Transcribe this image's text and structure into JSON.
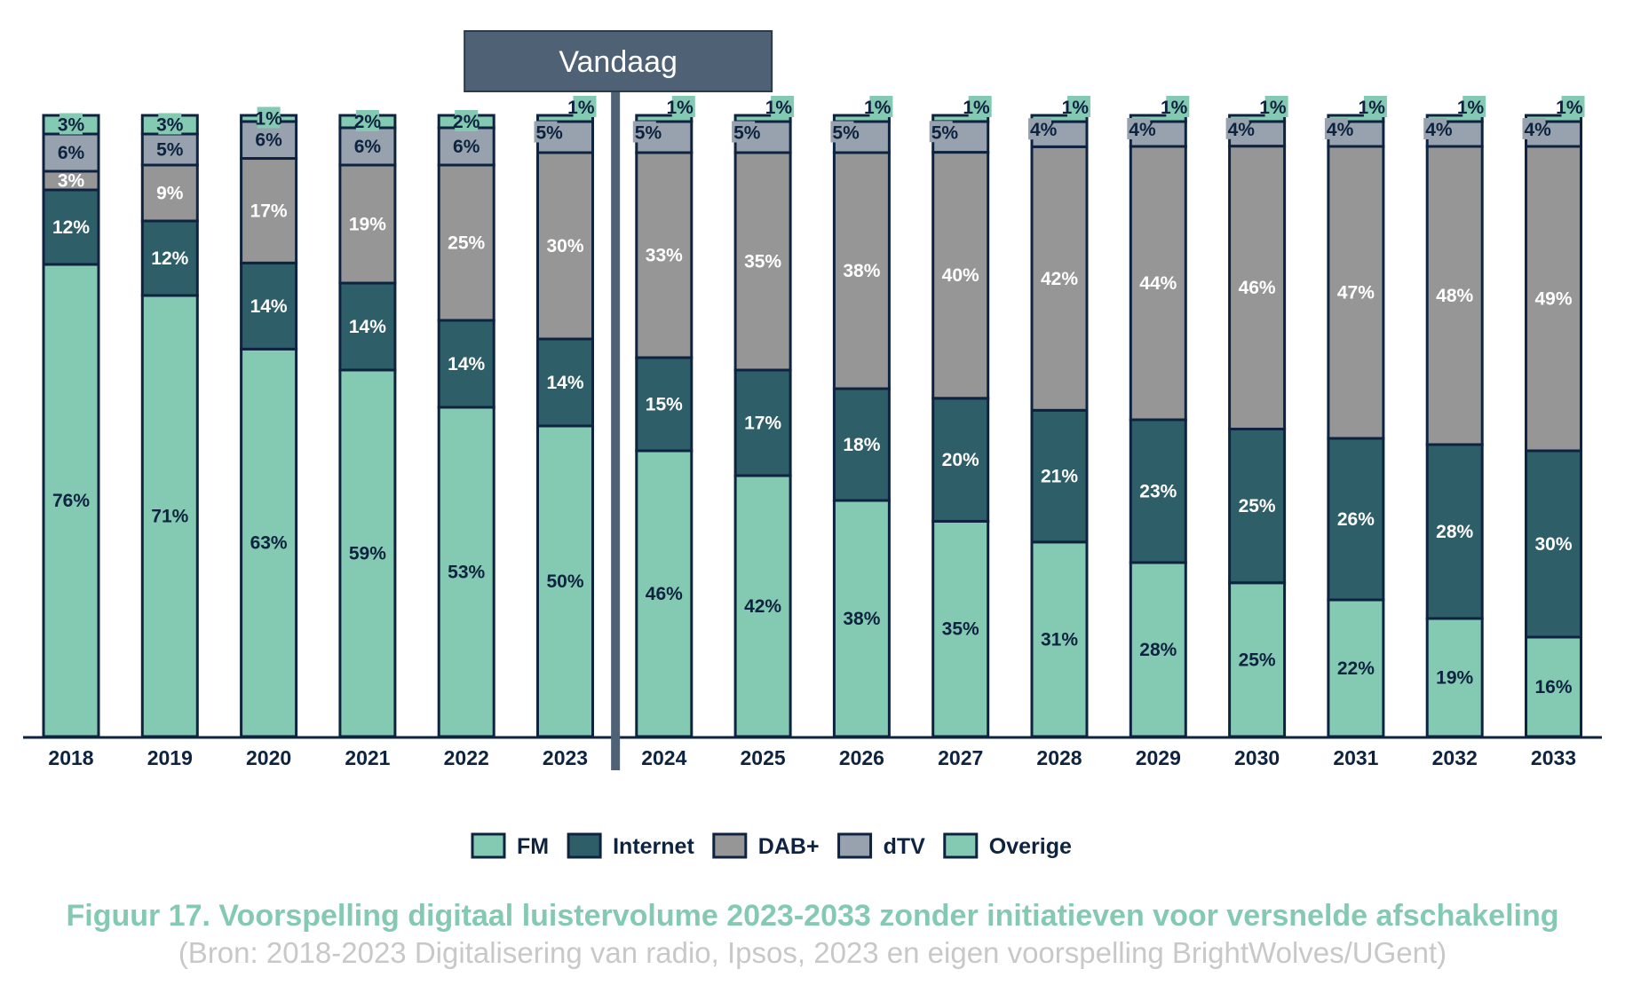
{
  "chart_data": {
    "type": "bar",
    "stacked": true,
    "categories": [
      "2018",
      "2019",
      "2020",
      "2021",
      "2022",
      "2023",
      "2024",
      "2025",
      "2026",
      "2027",
      "2028",
      "2029",
      "2030",
      "2031",
      "2032",
      "2033"
    ],
    "series": [
      {
        "name": "FM",
        "color": "#84c9b1",
        "values": [
          76,
          71,
          63,
          59,
          53,
          50,
          46,
          42,
          38,
          35,
          31,
          28,
          25,
          22,
          19,
          16
        ]
      },
      {
        "name": "Internet",
        "color": "#2e5e67",
        "values": [
          12,
          12,
          14,
          14,
          14,
          14,
          15,
          17,
          18,
          20,
          21,
          23,
          25,
          26,
          28,
          30
        ]
      },
      {
        "name": "DAB+",
        "color": "#969696",
        "values": [
          3,
          9,
          17,
          19,
          25,
          30,
          33,
          35,
          38,
          40,
          42,
          44,
          46,
          47,
          48,
          49
        ]
      },
      {
        "name": "dTV",
        "color": "#97a2ae",
        "values": [
          6,
          5,
          6,
          6,
          6,
          5,
          5,
          5,
          5,
          5,
          4,
          4,
          4,
          4,
          4,
          4
        ]
      },
      {
        "name": "Overige",
        "color": "#84c9b1",
        "values": [
          3,
          3,
          1,
          2,
          2,
          1,
          1,
          1,
          1,
          1,
          1,
          1,
          1,
          1,
          1,
          1
        ]
      }
    ],
    "value_suffix": "%",
    "marker": {
      "label": "Vandaag",
      "between": [
        "2023",
        "2024"
      ]
    },
    "legend_position": "bottom",
    "grid": false,
    "ylim": [
      0,
      100
    ]
  },
  "caption": "Figuur 17. Voorspelling digitaal luistervolume 2023-2033 zonder initiatieven voor versnelde afschakeling",
  "source": "(Bron: 2018-2023 Digitalisering van radio, Ipsos, 2023 en eigen voorspelling BrightWolves/UGent)"
}
